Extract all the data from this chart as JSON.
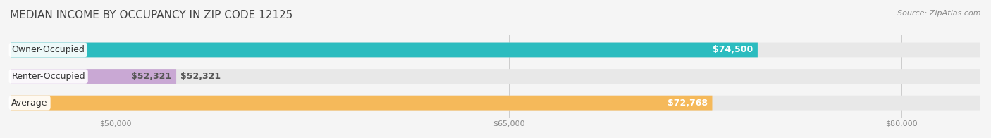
{
  "title": "MEDIAN INCOME BY OCCUPANCY IN ZIP CODE 12125",
  "source": "Source: ZipAtlas.com",
  "categories": [
    "Owner-Occupied",
    "Renter-Occupied",
    "Average"
  ],
  "values": [
    74500,
    52321,
    72768
  ],
  "labels": [
    "$74,500",
    "$52,321",
    "$72,768"
  ],
  "bar_colors": [
    "#2bbcbf",
    "#c9a8d4",
    "#f5b95a"
  ],
  "xlim_min": 46000,
  "xlim_max": 83000,
  "xticks": [
    50000,
    65000,
    80000
  ],
  "xtick_labels": [
    "$50,000",
    "$65,000",
    "$80,000"
  ],
  "bar_height": 0.55,
  "bg_color": "#f5f5f5",
  "bar_bg_color": "#e8e8e8",
  "title_fontsize": 11,
  "source_fontsize": 8,
  "label_fontsize": 9,
  "category_fontsize": 9,
  "tick_fontsize": 8
}
